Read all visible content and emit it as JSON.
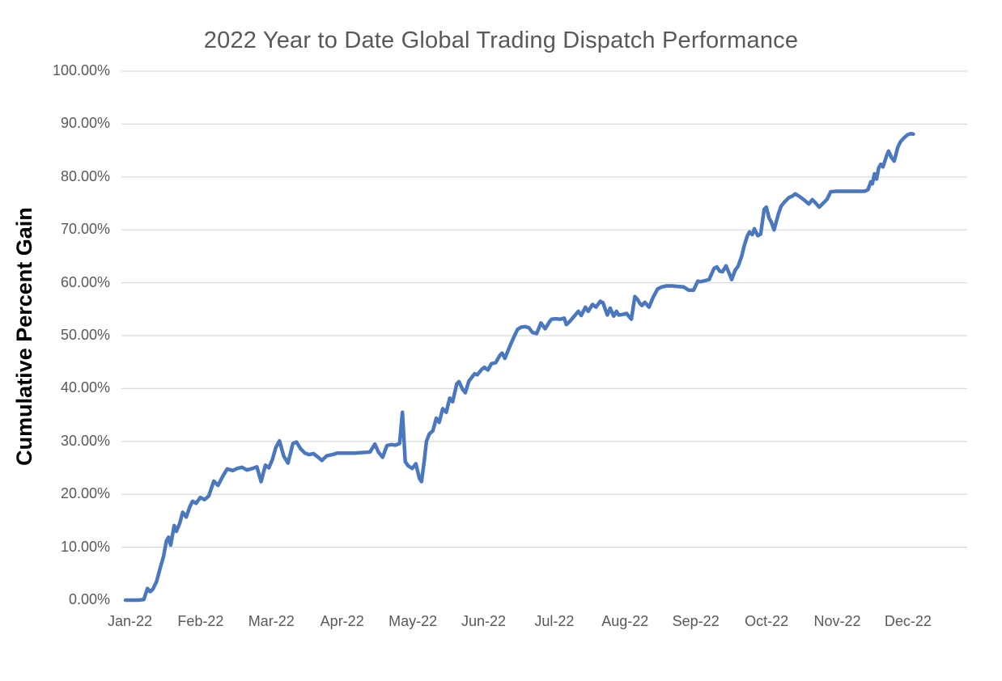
{
  "page": {
    "title": "2022 Year to Date Global Trading Dispatch Performance"
  },
  "colors": {
    "series_line": "#4a77bd",
    "title_text": "#595959",
    "tick_text": "#595959",
    "gridline": "#d9d9d9",
    "y_axis_title_text": "#000000",
    "background": "#ffffff"
  },
  "chart_data": {
    "type": "line",
    "title": "2022 Year to Date Global Trading Dispatch Performance",
    "xlabel": "",
    "ylabel": "Cumulative Percent Gain",
    "ylim": [
      0,
      100
    ],
    "y_unit": "percent",
    "grid": "horizontal-only, no 0% baseline drawn",
    "legend": "none",
    "y_ticks": [
      {
        "label": "100.00%",
        "value": 100
      },
      {
        "label": "90.00%",
        "value": 90
      },
      {
        "label": "80.00%",
        "value": 80
      },
      {
        "label": "70.00%",
        "value": 70
      },
      {
        "label": "60.00%",
        "value": 60
      },
      {
        "label": "50.00%",
        "value": 50
      },
      {
        "label": "40.00%",
        "value": 40
      },
      {
        "label": "30.00%",
        "value": 30
      },
      {
        "label": "20.00%",
        "value": 20
      },
      {
        "label": "10.00%",
        "value": 10
      },
      {
        "label": "0.00%",
        "value": 0
      }
    ],
    "x_tick_labels": [
      "Jan-22",
      "Feb-22",
      "Mar-22",
      "Apr-22",
      "May-22",
      "Jun-22",
      "Jul-22",
      "Aug-22",
      "Sep-22",
      "Oct-22",
      "Nov-22",
      "Dec-22"
    ],
    "series": [
      {
        "name": "Cumulative Percent Gain",
        "color": "#4a77bd",
        "x_unit": "months elapsed since Jan 1 2022 (fractional month index)",
        "y_unit": "cumulative percent gain",
        "points": [
          [
            0.0,
            0.0
          ],
          [
            0.09,
            0.0
          ],
          [
            0.18,
            0.0
          ],
          [
            0.26,
            0.1
          ],
          [
            0.31,
            2.2
          ],
          [
            0.35,
            1.6
          ],
          [
            0.39,
            2.1
          ],
          [
            0.44,
            3.5
          ],
          [
            0.49,
            6.0
          ],
          [
            0.54,
            8.3
          ],
          [
            0.58,
            11.2
          ],
          [
            0.61,
            11.9
          ],
          [
            0.64,
            10.4
          ],
          [
            0.69,
            14.1
          ],
          [
            0.72,
            13.0
          ],
          [
            0.77,
            14.6
          ],
          [
            0.81,
            16.6
          ],
          [
            0.86,
            15.7
          ],
          [
            0.91,
            17.6
          ],
          [
            0.95,
            18.7
          ],
          [
            1.0,
            18.3
          ],
          [
            1.06,
            19.4
          ],
          [
            1.12,
            19.0
          ],
          [
            1.18,
            19.7
          ],
          [
            1.25,
            22.5
          ],
          [
            1.31,
            21.7
          ],
          [
            1.38,
            23.5
          ],
          [
            1.44,
            24.8
          ],
          [
            1.52,
            24.5
          ],
          [
            1.58,
            24.9
          ],
          [
            1.65,
            25.1
          ],
          [
            1.72,
            24.6
          ],
          [
            1.8,
            24.9
          ],
          [
            1.86,
            25.2
          ],
          [
            1.92,
            22.4
          ],
          [
            1.98,
            25.5
          ],
          [
            2.03,
            25.0
          ],
          [
            2.08,
            26.6
          ],
          [
            2.13,
            28.9
          ],
          [
            2.18,
            30.1
          ],
          [
            2.24,
            27.2
          ],
          [
            2.3,
            25.9
          ],
          [
            2.37,
            29.6
          ],
          [
            2.42,
            29.9
          ],
          [
            2.48,
            28.6
          ],
          [
            2.54,
            27.8
          ],
          [
            2.6,
            27.5
          ],
          [
            2.66,
            27.7
          ],
          [
            2.73,
            27.0
          ],
          [
            2.78,
            26.4
          ],
          [
            2.85,
            27.3
          ],
          [
            2.93,
            27.5
          ],
          [
            3.0,
            27.8
          ],
          [
            3.12,
            27.8
          ],
          [
            3.24,
            27.8
          ],
          [
            3.36,
            27.9
          ],
          [
            3.46,
            28.0
          ],
          [
            3.53,
            29.5
          ],
          [
            3.58,
            28.0
          ],
          [
            3.64,
            27.0
          ],
          [
            3.7,
            29.2
          ],
          [
            3.76,
            29.4
          ],
          [
            3.82,
            29.3
          ],
          [
            3.88,
            29.6
          ],
          [
            3.92,
            35.5
          ],
          [
            3.96,
            26.2
          ],
          [
            4.0,
            25.4
          ],
          [
            4.06,
            24.9
          ],
          [
            4.11,
            25.8
          ],
          [
            4.16,
            23.0
          ],
          [
            4.19,
            22.4
          ],
          [
            4.23,
            26.5
          ],
          [
            4.26,
            30.0
          ],
          [
            4.3,
            31.4
          ],
          [
            4.35,
            32.0
          ],
          [
            4.4,
            34.4
          ],
          [
            4.44,
            33.6
          ],
          [
            4.49,
            36.2
          ],
          [
            4.54,
            35.5
          ],
          [
            4.59,
            38.2
          ],
          [
            4.63,
            37.5
          ],
          [
            4.69,
            40.9
          ],
          [
            4.72,
            41.3
          ],
          [
            4.77,
            39.9
          ],
          [
            4.81,
            39.2
          ],
          [
            4.86,
            41.4
          ],
          [
            4.9,
            42.1
          ],
          [
            4.94,
            42.8
          ],
          [
            4.98,
            42.6
          ],
          [
            5.04,
            43.6
          ],
          [
            5.08,
            44.0
          ],
          [
            5.13,
            43.5
          ],
          [
            5.18,
            44.7
          ],
          [
            5.24,
            44.9
          ],
          [
            5.3,
            46.3
          ],
          [
            5.33,
            46.7
          ],
          [
            5.37,
            45.7
          ],
          [
            5.44,
            48.0
          ],
          [
            5.5,
            49.8
          ],
          [
            5.55,
            51.2
          ],
          [
            5.6,
            51.6
          ],
          [
            5.66,
            51.7
          ],
          [
            5.71,
            51.5
          ],
          [
            5.76,
            50.6
          ],
          [
            5.82,
            50.4
          ],
          [
            5.88,
            52.4
          ],
          [
            5.94,
            51.3
          ],
          [
            6.0,
            52.6
          ],
          [
            6.03,
            53.1
          ],
          [
            6.09,
            53.2
          ],
          [
            6.15,
            53.1
          ],
          [
            6.21,
            53.3
          ],
          [
            6.24,
            52.1
          ],
          [
            6.29,
            52.7
          ],
          [
            6.36,
            53.8
          ],
          [
            6.41,
            54.6
          ],
          [
            6.45,
            53.8
          ],
          [
            6.51,
            55.4
          ],
          [
            6.55,
            54.6
          ],
          [
            6.61,
            55.9
          ],
          [
            6.66,
            55.4
          ],
          [
            6.72,
            56.5
          ],
          [
            6.76,
            56.2
          ],
          [
            6.79,
            55.0
          ],
          [
            6.82,
            53.9
          ],
          [
            6.86,
            55.2
          ],
          [
            6.91,
            53.7
          ],
          [
            6.95,
            54.6
          ],
          [
            6.98,
            53.9
          ],
          [
            7.04,
            54.0
          ],
          [
            7.09,
            54.2
          ],
          [
            7.16,
            53.1
          ],
          [
            7.21,
            57.4
          ],
          [
            7.25,
            56.8
          ],
          [
            7.28,
            56.1
          ],
          [
            7.31,
            55.7
          ],
          [
            7.35,
            56.3
          ],
          [
            7.41,
            55.4
          ],
          [
            7.47,
            57.3
          ],
          [
            7.53,
            58.8
          ],
          [
            7.59,
            59.2
          ],
          [
            7.66,
            59.4
          ],
          [
            7.74,
            59.4
          ],
          [
            7.82,
            59.3
          ],
          [
            7.9,
            59.2
          ],
          [
            7.97,
            58.6
          ],
          [
            8.04,
            58.6
          ],
          [
            8.1,
            60.3
          ],
          [
            8.14,
            60.2
          ],
          [
            8.2,
            60.4
          ],
          [
            8.26,
            60.6
          ],
          [
            8.33,
            62.7
          ],
          [
            8.37,
            63.0
          ],
          [
            8.41,
            62.2
          ],
          [
            8.45,
            62.1
          ],
          [
            8.5,
            63.2
          ],
          [
            8.55,
            61.6
          ],
          [
            8.58,
            60.6
          ],
          [
            8.63,
            62.4
          ],
          [
            8.67,
            63.1
          ],
          [
            8.72,
            65.0
          ],
          [
            8.76,
            67.1
          ],
          [
            8.8,
            68.8
          ],
          [
            8.83,
            69.6
          ],
          [
            8.87,
            69.1
          ],
          [
            8.9,
            70.2
          ],
          [
            8.95,
            68.9
          ],
          [
            8.99,
            69.2
          ],
          [
            9.04,
            73.9
          ],
          [
            9.07,
            74.3
          ],
          [
            9.11,
            72.2
          ],
          [
            9.14,
            71.5
          ],
          [
            9.18,
            70.0
          ],
          [
            9.24,
            73.0
          ],
          [
            9.28,
            74.5
          ],
          [
            9.33,
            75.3
          ],
          [
            9.39,
            76.1
          ],
          [
            9.44,
            76.4
          ],
          [
            9.48,
            76.8
          ],
          [
            9.54,
            76.3
          ],
          [
            9.61,
            75.6
          ],
          [
            9.67,
            74.9
          ],
          [
            9.72,
            75.7
          ],
          [
            9.76,
            75.2
          ],
          [
            9.82,
            74.3
          ],
          [
            9.88,
            75.1
          ],
          [
            9.93,
            75.8
          ],
          [
            9.98,
            77.2
          ],
          [
            10.06,
            77.3
          ],
          [
            10.16,
            77.3
          ],
          [
            10.26,
            77.3
          ],
          [
            10.36,
            77.3
          ],
          [
            10.46,
            77.3
          ],
          [
            10.51,
            77.6
          ],
          [
            10.53,
            78.4
          ],
          [
            10.55,
            79.1
          ],
          [
            10.57,
            78.7
          ],
          [
            10.6,
            80.6
          ],
          [
            10.63,
            79.6
          ],
          [
            10.66,
            81.7
          ],
          [
            10.69,
            82.4
          ],
          [
            10.72,
            81.9
          ],
          [
            10.77,
            83.9
          ],
          [
            10.8,
            84.9
          ],
          [
            10.84,
            83.7
          ],
          [
            10.88,
            83.0
          ],
          [
            10.93,
            85.6
          ],
          [
            10.97,
            86.7
          ],
          [
            11.02,
            87.4
          ],
          [
            11.07,
            88.0
          ],
          [
            11.12,
            88.2
          ],
          [
            11.15,
            88.1
          ]
        ]
      }
    ]
  }
}
